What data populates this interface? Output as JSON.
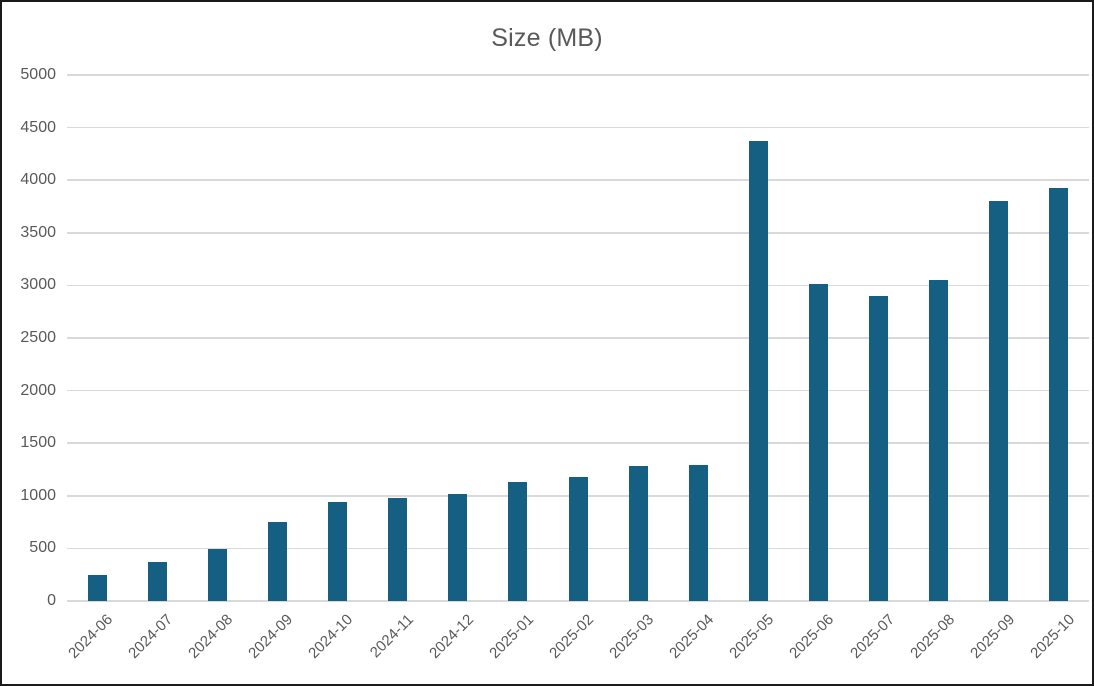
{
  "chart_data": {
    "type": "bar",
    "title": "Size (MB)",
    "categories": [
      "2024-06",
      "2024-07",
      "2024-08",
      "2024-09",
      "2024-10",
      "2024-11",
      "2024-12",
      "2025-01",
      "2025-02",
      "2025-03",
      "2025-04",
      "2025-05",
      "2025-06",
      "2025-07",
      "2025-08",
      "2025-09",
      "2025-10"
    ],
    "values": [
      250,
      370,
      490,
      750,
      940,
      975,
      1020,
      1130,
      1180,
      1280,
      1290,
      4370,
      3010,
      2900,
      3050,
      3800,
      3930
    ],
    "xlabel": "",
    "ylabel": "",
    "ylim": [
      0,
      5000
    ],
    "ytick_step": 500,
    "ytick_labels": [
      "0",
      "500",
      "1000",
      "1500",
      "2000",
      "2500",
      "3000",
      "3500",
      "4000",
      "4500",
      "5000"
    ],
    "grid": true,
    "legend": false,
    "bar_color": "#156082",
    "grid_color": "#D9D9D9",
    "axis_text_color": "#595959",
    "background": "#FFFFFF",
    "frame_border_color": "#1A1A1A"
  }
}
